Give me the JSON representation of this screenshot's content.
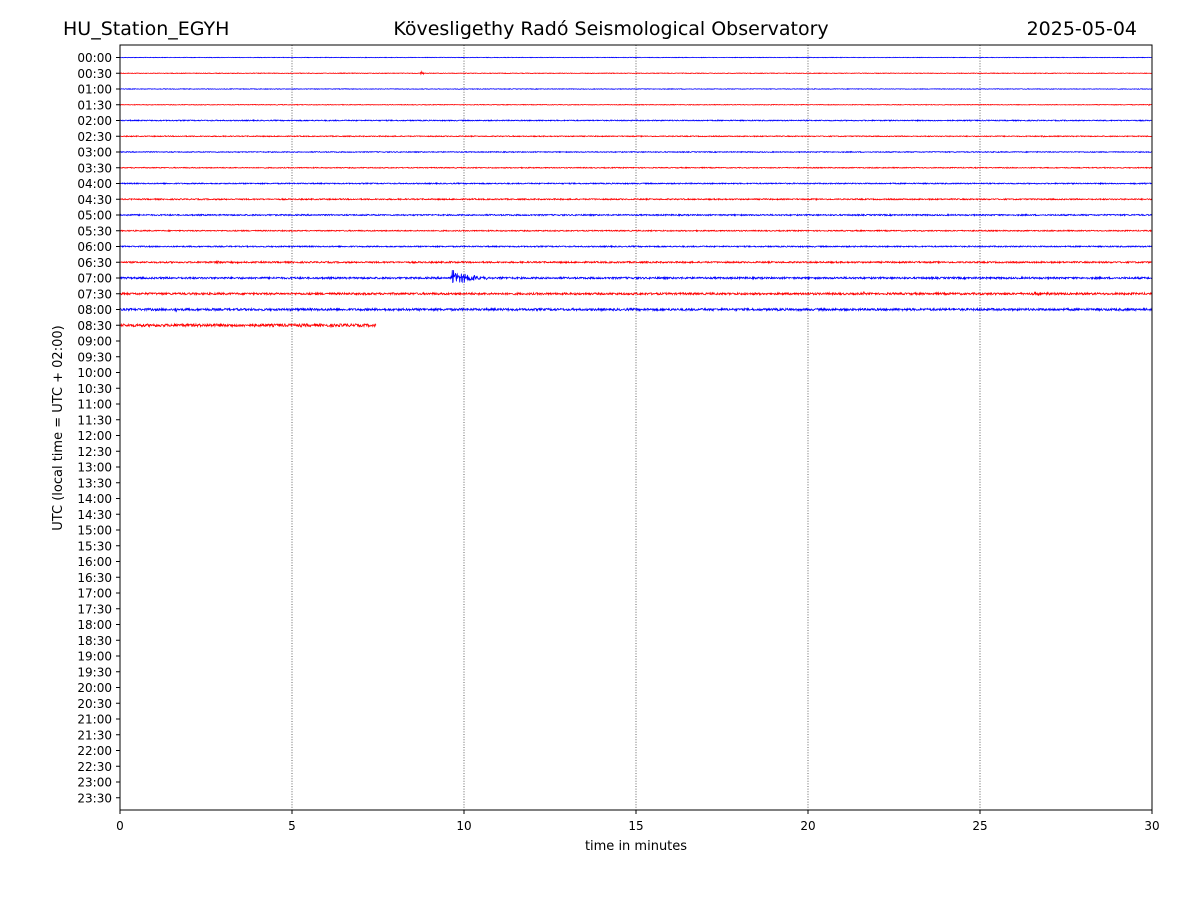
{
  "chart_data": {
    "type": "line",
    "title_left": "HU_Station_EGYH",
    "title": "Kövesligethy Radó Seismological Observatory",
    "title_right": "2025-05-04",
    "xlabel": "time in minutes",
    "ylabel": "UTC (local time = UTC + 02:00)",
    "xlim": [
      0,
      30
    ],
    "x_ticks": [
      0,
      5,
      10,
      15,
      20,
      25,
      30
    ],
    "y_tick_labels": [
      "00:00",
      "00:30",
      "01:00",
      "01:30",
      "02:00",
      "02:30",
      "03:00",
      "03:30",
      "04:00",
      "04:30",
      "05:00",
      "05:30",
      "06:00",
      "06:30",
      "07:00",
      "07:30",
      "08:00",
      "08:30",
      "09:00",
      "09:30",
      "10:00",
      "10:30",
      "11:00",
      "11:30",
      "12:00",
      "12:30",
      "13:00",
      "13:30",
      "14:00",
      "14:30",
      "15:00",
      "15:30",
      "16:00",
      "16:30",
      "17:00",
      "17:30",
      "18:00",
      "18:30",
      "19:00",
      "19:30",
      "20:00",
      "20:30",
      "21:00",
      "21:30",
      "22:00",
      "22:30",
      "23:00",
      "23:30"
    ],
    "grid": "vertical dotted at x ticks",
    "line_colors": [
      "#0000ff",
      "#ff0000"
    ],
    "series": [
      {
        "row": "00:00",
        "end_minute": 30,
        "noise": 0.25,
        "events": []
      },
      {
        "row": "00:30",
        "end_minute": 30,
        "noise": 0.3,
        "events": [
          {
            "minute": 8.75,
            "amplitude": 3.0,
            "duration": 0.15
          }
        ]
      },
      {
        "row": "01:00",
        "end_minute": 30,
        "noise": 0.3,
        "events": []
      },
      {
        "row": "01:30",
        "end_minute": 30,
        "noise": 0.3,
        "events": [
          {
            "minute": 29.9,
            "amplitude": 1.2,
            "duration": 0.1
          }
        ]
      },
      {
        "row": "02:00",
        "end_minute": 30,
        "noise": 0.5,
        "events": []
      },
      {
        "row": "02:30",
        "end_minute": 30,
        "noise": 0.45,
        "events": [
          {
            "minute": 26.8,
            "amplitude": 1.0,
            "duration": 0.2
          }
        ]
      },
      {
        "row": "03:00",
        "end_minute": 30,
        "noise": 0.45,
        "events": []
      },
      {
        "row": "03:30",
        "end_minute": 30,
        "noise": 0.45,
        "events": []
      },
      {
        "row": "04:00",
        "end_minute": 30,
        "noise": 0.55,
        "events": [
          {
            "minute": 29.5,
            "amplitude": 1.2,
            "duration": 0.2
          }
        ]
      },
      {
        "row": "04:30",
        "end_minute": 30,
        "noise": 0.6,
        "events": []
      },
      {
        "row": "05:00",
        "end_minute": 30,
        "noise": 0.65,
        "events": [
          {
            "minute": 0.1,
            "amplitude": 1.5,
            "duration": 0.2
          }
        ]
      },
      {
        "row": "05:30",
        "end_minute": 30,
        "noise": 0.55,
        "events": []
      },
      {
        "row": "06:00",
        "end_minute": 30,
        "noise": 0.6,
        "events": []
      },
      {
        "row": "06:30",
        "end_minute": 30,
        "noise": 0.75,
        "events": [
          {
            "minute": 2.8,
            "amplitude": 1.4,
            "duration": 1.5
          },
          {
            "minute": 9.6,
            "amplitude": 1.2,
            "duration": 0.2
          }
        ]
      },
      {
        "row": "07:00",
        "end_minute": 30,
        "noise": 0.9,
        "events": [
          {
            "minute": 9.65,
            "amplitude": 8.0,
            "duration": 1.6
          }
        ]
      },
      {
        "row": "07:30",
        "end_minute": 30,
        "noise": 1.0,
        "events": [
          {
            "minute": 21.6,
            "amplitude": 1.5,
            "duration": 0.4
          },
          {
            "minute": 26.5,
            "amplitude": 1.5,
            "duration": 1.5
          }
        ]
      },
      {
        "row": "08:00",
        "end_minute": 30,
        "noise": 1.1,
        "events": [
          {
            "minute": 1.6,
            "amplitude": 3.5,
            "duration": 0.2
          },
          {
            "minute": 29.3,
            "amplitude": 2.0,
            "duration": 0.6
          }
        ]
      },
      {
        "row": "08:30",
        "end_minute": 7.45,
        "noise": 1.4,
        "events": [
          {
            "minute": 7.35,
            "amplitude": 2.5,
            "duration": 0.1
          }
        ]
      }
    ]
  }
}
